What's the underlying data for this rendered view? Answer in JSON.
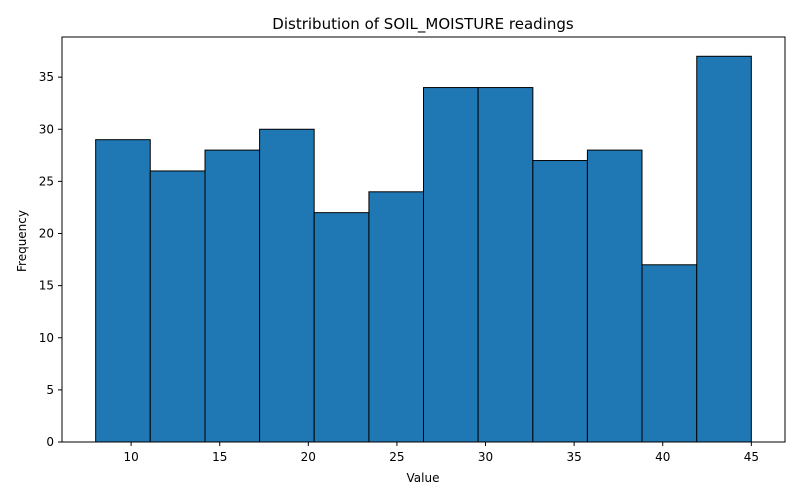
{
  "chart_data": {
    "type": "histogram",
    "title": "Distribution of SOIL_MOISTURE readings",
    "xlabel": "Value",
    "ylabel": "Frequency",
    "xlim": [
      6.1,
      46.9
    ],
    "ylim": [
      0,
      38.85
    ],
    "x_ticks": [
      10,
      15,
      20,
      25,
      30,
      35,
      40,
      45
    ],
    "y_ticks": [
      0,
      5,
      10,
      15,
      20,
      25,
      30,
      35
    ],
    "bins": [
      {
        "start": 8.0,
        "end": 11.08,
        "count": 29
      },
      {
        "start": 11.08,
        "end": 14.17,
        "count": 26
      },
      {
        "start": 14.17,
        "end": 17.25,
        "count": 28
      },
      {
        "start": 17.25,
        "end": 20.33,
        "count": 30
      },
      {
        "start": 20.33,
        "end": 23.42,
        "count": 22
      },
      {
        "start": 23.42,
        "end": 26.5,
        "count": 24
      },
      {
        "start": 26.5,
        "end": 29.58,
        "count": 34
      },
      {
        "start": 29.58,
        "end": 32.67,
        "count": 34
      },
      {
        "start": 32.67,
        "end": 35.75,
        "count": 27
      },
      {
        "start": 35.75,
        "end": 38.83,
        "count": 28
      },
      {
        "start": 38.83,
        "end": 41.92,
        "count": 17
      },
      {
        "start": 41.92,
        "end": 45.0,
        "count": 37
      }
    ],
    "bar_color": "#1f77b4",
    "edge_color": "#000000",
    "grid": false
  }
}
